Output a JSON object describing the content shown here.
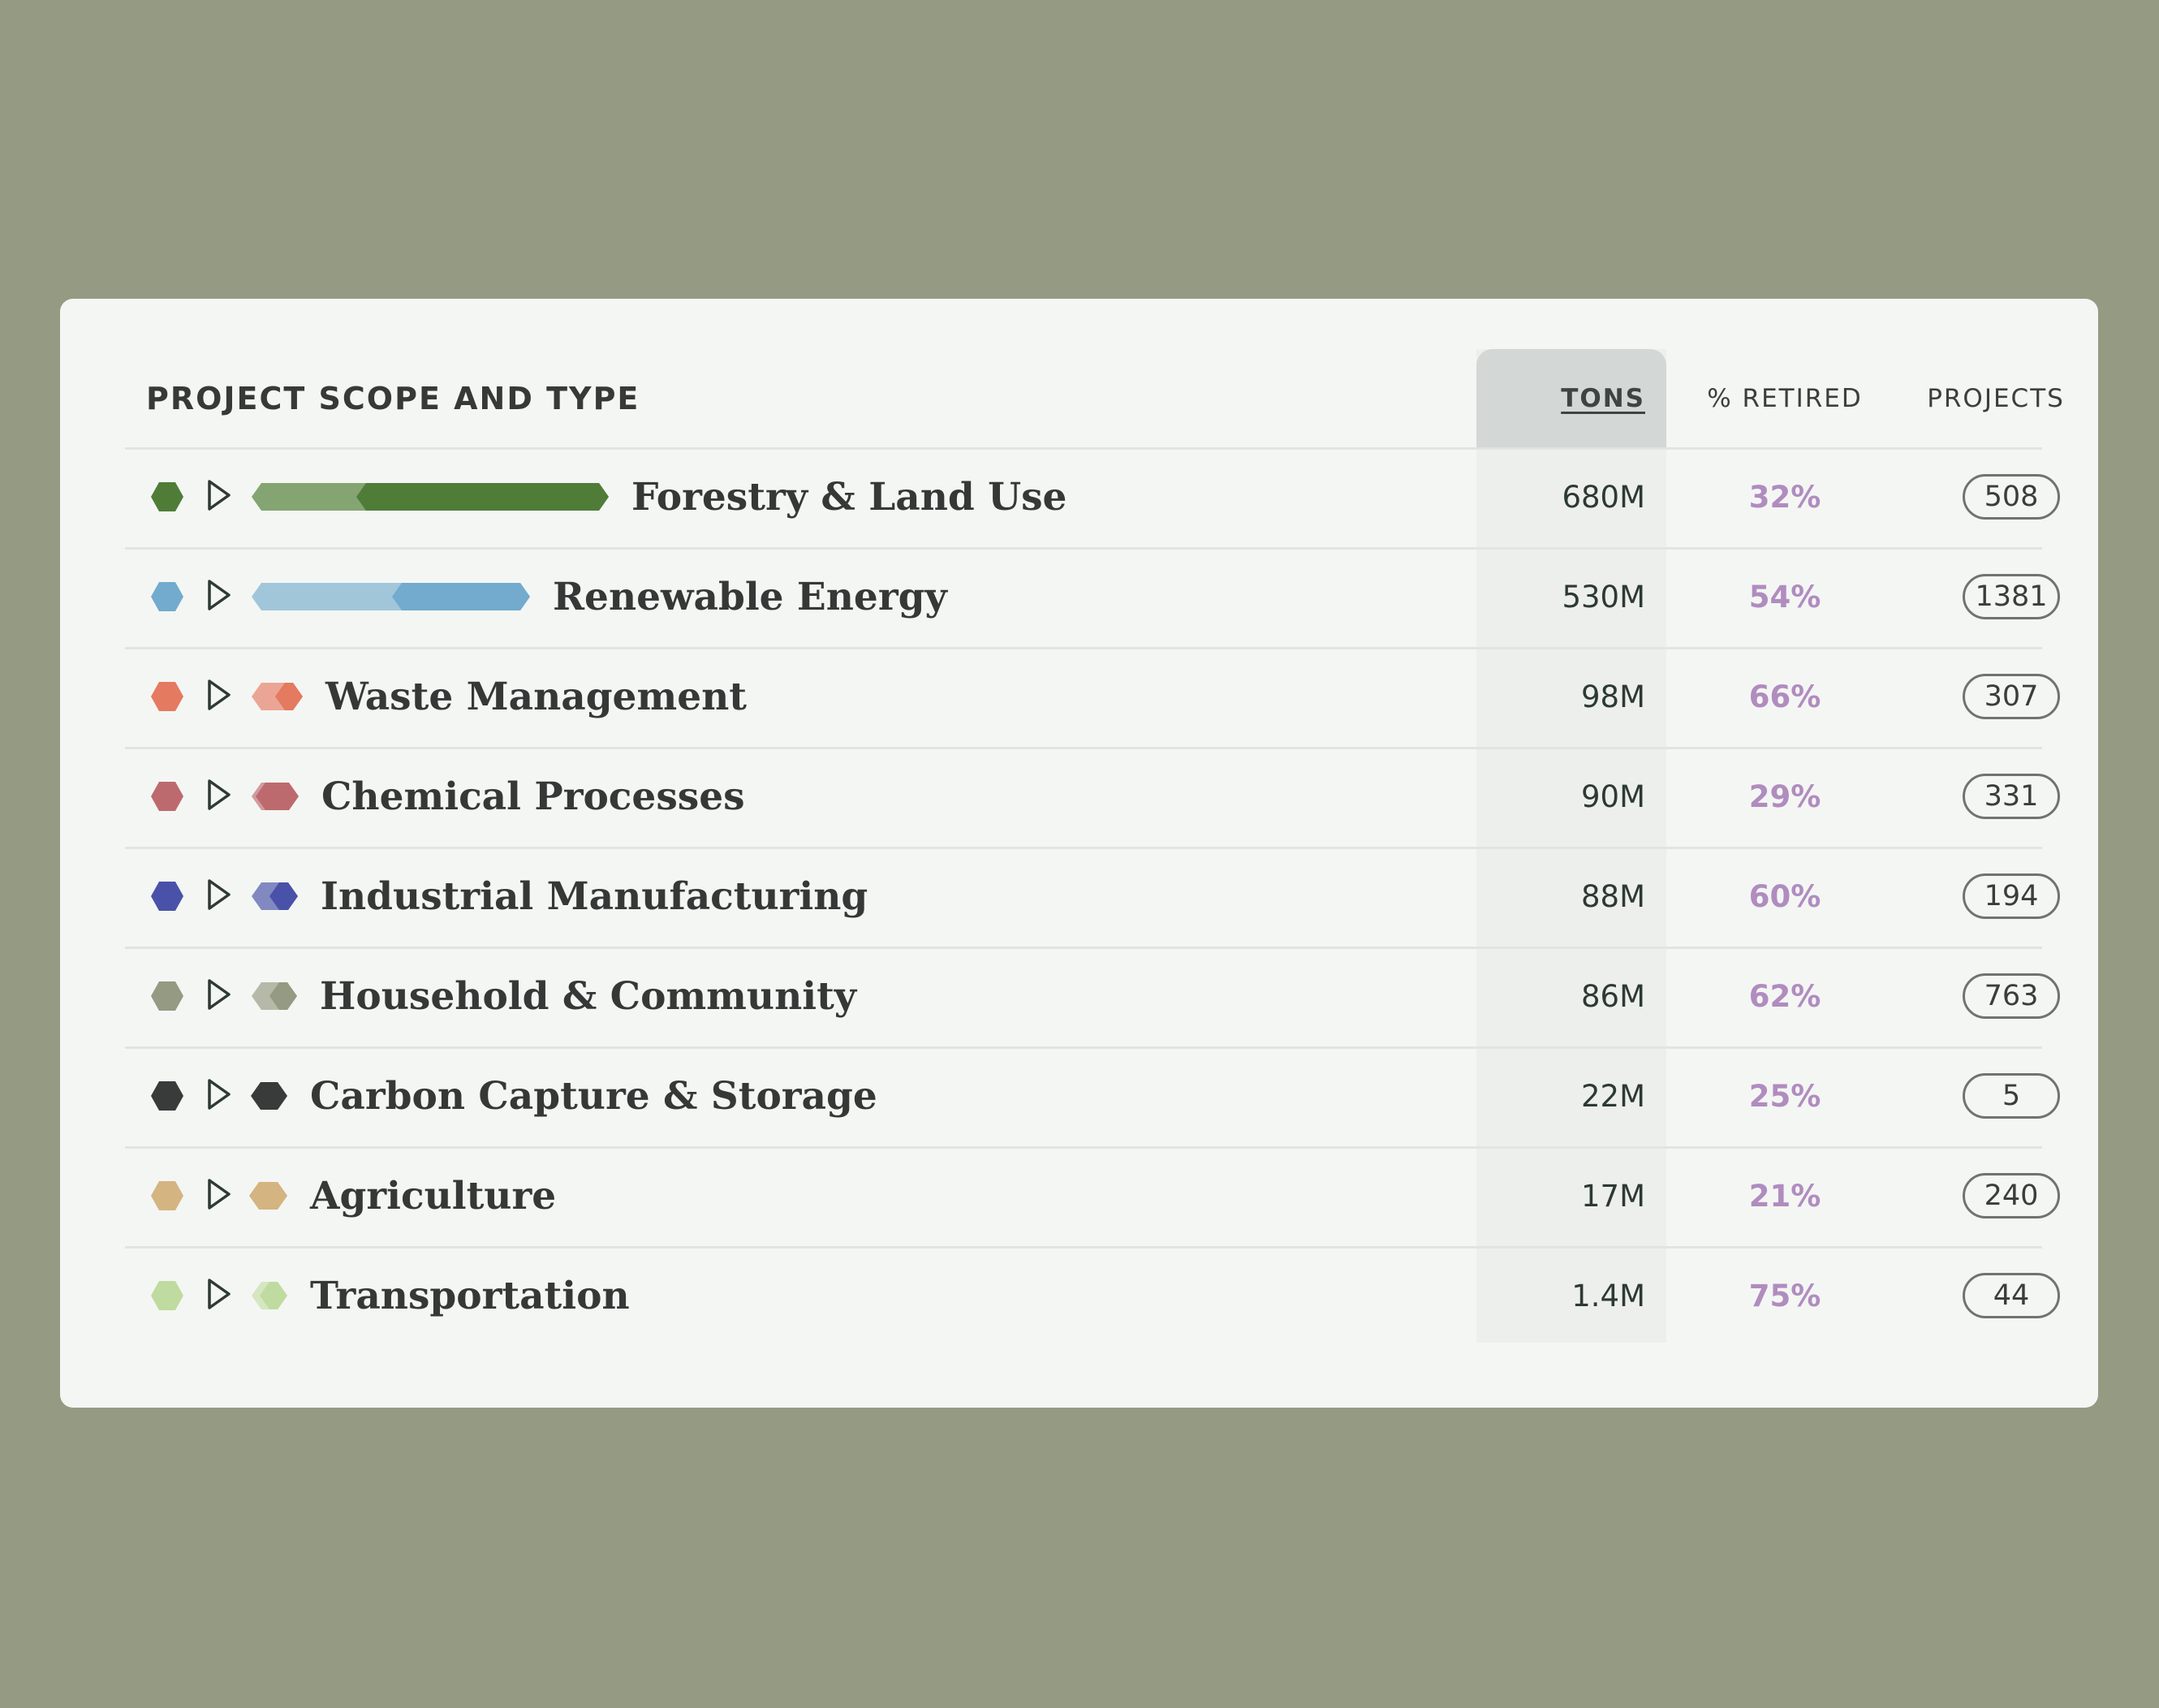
{
  "table": {
    "title": "PROJECT SCOPE AND TYPE",
    "columns": {
      "tons": "TONS",
      "retired": "% RETIRED",
      "projects": "PROJECTS"
    },
    "rows": [
      {
        "label": "Forestry & Land Use",
        "tons": "680M",
        "retired": "32%",
        "projects": "508",
        "color": "#4f7d38",
        "light_color": "#84a572",
        "icon": "play-icon"
      },
      {
        "label": "Renewable Energy",
        "tons": "530M",
        "retired": "54%",
        "projects": "1381",
        "color": "#72abcd",
        "light_color": "#a1c6da",
        "icon": "play-icon"
      },
      {
        "label": "Waste Management",
        "tons": "98M",
        "retired": "66%",
        "projects": "307",
        "color": "#e47a60",
        "light_color": "#eba595",
        "icon": "play-icon"
      },
      {
        "label": "Chemical Processes",
        "tons": "90M",
        "retired": "29%",
        "projects": "331",
        "color": "#bd6a6e",
        "light_color": "#d19b9d",
        "icon": "play-icon"
      },
      {
        "label": "Industrial Manufacturing",
        "tons": "88M",
        "retired": "60%",
        "projects": "194",
        "color": "#4952a8",
        "light_color": "#8289c1",
        "icon": "play-icon"
      },
      {
        "label": "Household & Community",
        "tons": "86M",
        "retired": "62%",
        "projects": "763",
        "color": "#959a83",
        "light_color": "#b6b9a8",
        "icon": "play-icon"
      },
      {
        "label": "Carbon Capture & Storage",
        "tons": "22M",
        "retired": "25%",
        "projects": "5",
        "color": "#393b3a",
        "light_color": "#7c7e7d",
        "icon": "play-icon"
      },
      {
        "label": "Agriculture",
        "tons": "17M",
        "retired": "21%",
        "projects": "240",
        "color": "#d4b481",
        "light_color": "#e0cba5",
        "icon": "play-icon"
      },
      {
        "label": "Transportation",
        "tons": "1.4M",
        "retired": "75%",
        "projects": "44",
        "color": "#bfdb9f",
        "light_color": "#d4e7c0",
        "icon": "play-icon"
      }
    ]
  }
}
